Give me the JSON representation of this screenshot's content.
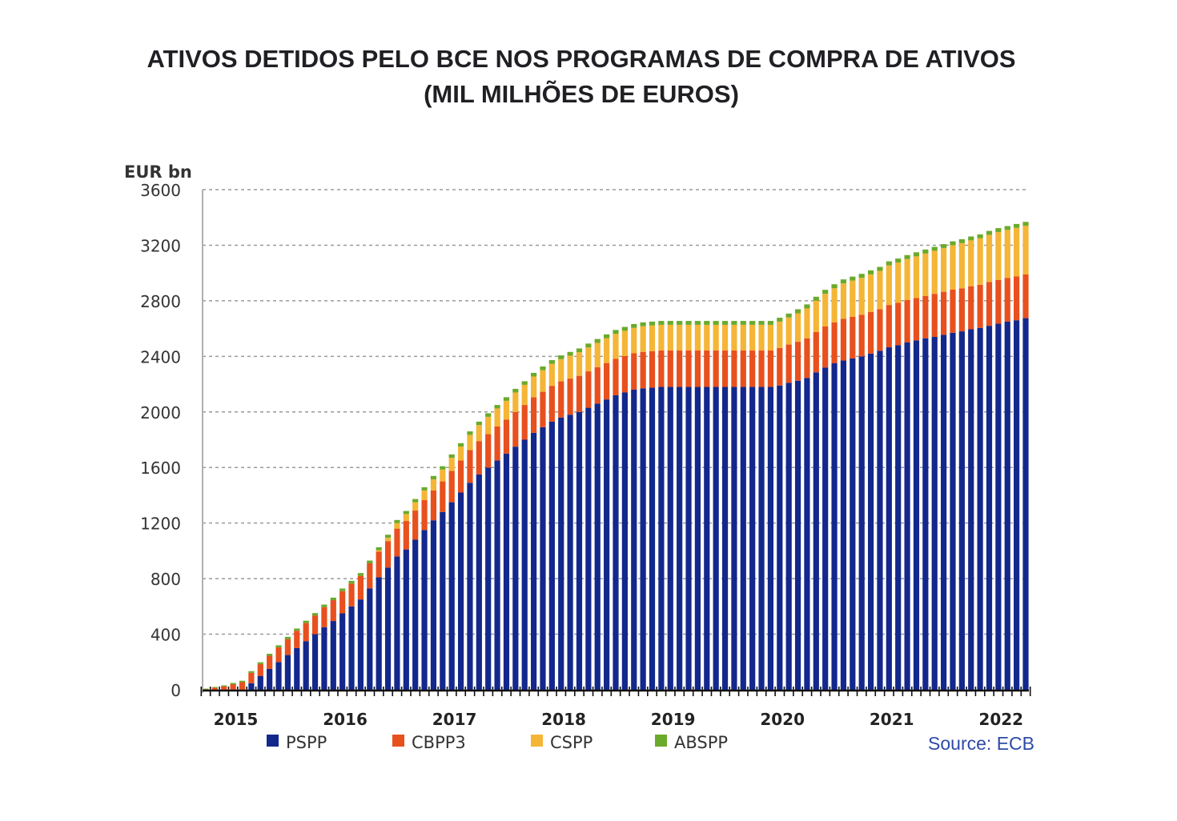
{
  "header": {
    "title_line1": "ATIVOS DETIDOS PELO BCE NOS PROGRAMAS DE COMPRA DE ATIVOS",
    "title_line2": "(MIL MILHÕES DE EUROS)"
  },
  "chart_data": {
    "type": "bar",
    "stacked": true,
    "title": "ATIVOS DETIDOS PELO BCE NOS PROGRAMAS DE COMPRA DE ATIVOS (MIL MILHÕES DE EUROS)",
    "ylabel": "EUR bn",
    "xlabel": "",
    "ylim": [
      0,
      3600
    ],
    "yticks": [
      0,
      400,
      800,
      1200,
      1600,
      2000,
      2400,
      2800,
      3200,
      3600
    ],
    "grid": true,
    "legend_position": "bottom",
    "source": "Source: ECB",
    "x_year_labels": [
      "2015",
      "2016",
      "2017",
      "2018",
      "2019",
      "2020",
      "2021",
      "2022"
    ],
    "x_year_label_month_index": [
      4,
      16,
      28,
      40,
      52,
      64,
      76,
      88
    ],
    "period": "monthly, Oct 2014 - Apr 2022",
    "series": [
      {
        "name": "PSPP",
        "color": "#13288c",
        "values": [
          0,
          0,
          0,
          0,
          0,
          47,
          100,
          150,
          200,
          250,
          300,
          350,
          400,
          450,
          495,
          550,
          600,
          650,
          730,
          810,
          880,
          960,
          1010,
          1080,
          1150,
          1220,
          1280,
          1350,
          1420,
          1490,
          1550,
          1600,
          1650,
          1700,
          1750,
          1800,
          1850,
          1890,
          1930,
          1960,
          1980,
          2000,
          2030,
          2060,
          2090,
          2120,
          2140,
          2160,
          2170,
          2175,
          2180,
          2180,
          2180,
          2180,
          2180,
          2180,
          2180,
          2180,
          2180,
          2180,
          2180,
          2180,
          2180,
          2190,
          2210,
          2225,
          2245,
          2285,
          2320,
          2350,
          2370,
          2385,
          2400,
          2420,
          2440,
          2465,
          2480,
          2500,
          2515,
          2530,
          2540,
          2555,
          2570,
          2580,
          2595,
          2605,
          2620,
          2635,
          2650,
          2660,
          2675
        ]
      },
      {
        "name": "CBPP3",
        "color": "#e8501e",
        "values": [
          5,
          15,
          25,
          40,
          55,
          75,
          85,
          95,
          105,
          115,
          125,
          130,
          135,
          145,
          150,
          160,
          165,
          170,
          180,
          185,
          190,
          200,
          205,
          210,
          215,
          215,
          220,
          225,
          230,
          235,
          240,
          240,
          245,
          245,
          250,
          250,
          255,
          255,
          258,
          260,
          260,
          260,
          262,
          262,
          262,
          262,
          262,
          262,
          262,
          262,
          262,
          262,
          262,
          262,
          262,
          262,
          262,
          262,
          262,
          262,
          262,
          262,
          262,
          270,
          275,
          280,
          285,
          290,
          295,
          295,
          300,
          300,
          300,
          300,
          300,
          305,
          305,
          305,
          305,
          305,
          310,
          310,
          310,
          310,
          310,
          310,
          315,
          315,
          315,
          315,
          315
        ]
      },
      {
        "name": "CSPP",
        "color": "#f5b536",
        "values": [
          0,
          0,
          0,
          0,
          0,
          0,
          0,
          0,
          0,
          0,
          0,
          0,
          0,
          0,
          0,
          0,
          0,
          0,
          0,
          10,
          25,
          40,
          50,
          60,
          70,
          80,
          85,
          95,
          100,
          110,
          115,
          125,
          130,
          135,
          140,
          145,
          150,
          155,
          158,
          160,
          165,
          170,
          172,
          175,
          178,
          180,
          182,
          183,
          185,
          185,
          185,
          185,
          185,
          185,
          185,
          185,
          185,
          185,
          185,
          185,
          185,
          185,
          185,
          190,
          195,
          205,
          215,
          225,
          235,
          245,
          255,
          260,
          265,
          270,
          275,
          285,
          290,
          295,
          300,
          305,
          310,
          315,
          320,
          325,
          330,
          335,
          340,
          345,
          345,
          350,
          350
        ]
      },
      {
        "name": "ABSPP",
        "color": "#6aaa2b",
        "values": [
          3,
          5,
          7,
          9,
          10,
          12,
          13,
          14,
          15,
          16,
          16,
          17,
          17,
          18,
          18,
          19,
          19,
          20,
          20,
          21,
          21,
          22,
          22,
          23,
          23,
          24,
          24,
          24,
          25,
          25,
          25,
          25,
          25,
          26,
          26,
          26,
          26,
          27,
          27,
          27,
          27,
          27,
          28,
          28,
          28,
          28,
          28,
          28,
          28,
          28,
          28,
          28,
          28,
          28,
          28,
          28,
          28,
          28,
          28,
          28,
          28,
          28,
          28,
          28,
          28,
          29,
          29,
          29,
          29,
          29,
          29,
          29,
          29,
          29,
          29,
          29,
          29,
          29,
          29,
          29,
          28,
          28,
          28,
          28,
          28,
          28,
          28,
          28,
          28,
          28,
          28
        ]
      }
    ]
  }
}
